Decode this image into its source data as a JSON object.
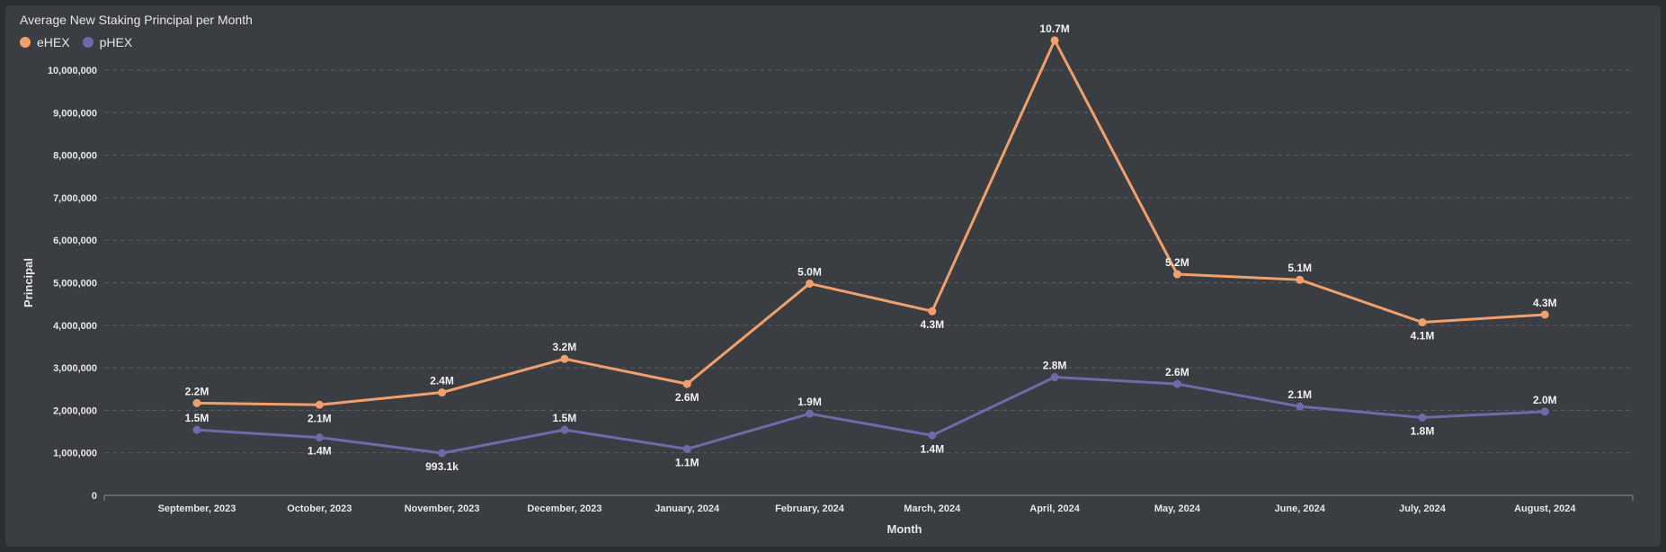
{
  "chart_data": {
    "type": "line",
    "title": "Average New Staking Principal per Month",
    "xlabel": "Month",
    "ylabel": "Principal",
    "ylim": [
      0,
      10000000
    ],
    "yticks": [
      0,
      1000000,
      2000000,
      3000000,
      4000000,
      5000000,
      6000000,
      7000000,
      8000000,
      9000000,
      10000000
    ],
    "ytick_labels": [
      "0",
      "1,000,000",
      "2,000,000",
      "3,000,000",
      "4,000,000",
      "5,000,000",
      "6,000,000",
      "7,000,000",
      "8,000,000",
      "9,000,000",
      "10,000,000"
    ],
    "grid": true,
    "legend_position": "top-left",
    "categories": [
      "September, 2023",
      "October, 2023",
      "November, 2023",
      "December, 2023",
      "January, 2024",
      "February, 2024",
      "March, 2024",
      "April, 2024",
      "May, 2024",
      "June, 2024",
      "July, 2024",
      "August, 2024"
    ],
    "series": [
      {
        "name": "eHEX",
        "color": "#f2a06b",
        "values": [
          2170000,
          2130000,
          2420000,
          3210000,
          2620000,
          4980000,
          4330000,
          10700000,
          5200000,
          5070000,
          4070000,
          4250000
        ],
        "labels": [
          "2.2M",
          "2.1M",
          "2.4M",
          "3.2M",
          "2.6M",
          "5.0M",
          "4.3M",
          "10.7M",
          "5.2M",
          "5.1M",
          "4.1M",
          "4.3M"
        ],
        "label_positions": [
          "above",
          "below",
          "above",
          "above",
          "below",
          "above",
          "below",
          "above",
          "above",
          "above",
          "below",
          "above"
        ]
      },
      {
        "name": "pHEX",
        "color": "#6f6aa8",
        "values": [
          1540000,
          1360000,
          993100,
          1540000,
          1090000,
          1920000,
          1410000,
          2780000,
          2620000,
          2090000,
          1830000,
          1970000
        ],
        "labels": [
          "1.5M",
          "1.4M",
          "993.1k",
          "1.5M",
          "1.1M",
          "1.9M",
          "1.4M",
          "2.8M",
          "2.6M",
          "2.1M",
          "1.8M",
          "2.0M"
        ],
        "label_positions": [
          "above",
          "below",
          "below",
          "above",
          "below",
          "above",
          "below",
          "above",
          "above",
          "above",
          "below",
          "above"
        ]
      }
    ]
  }
}
